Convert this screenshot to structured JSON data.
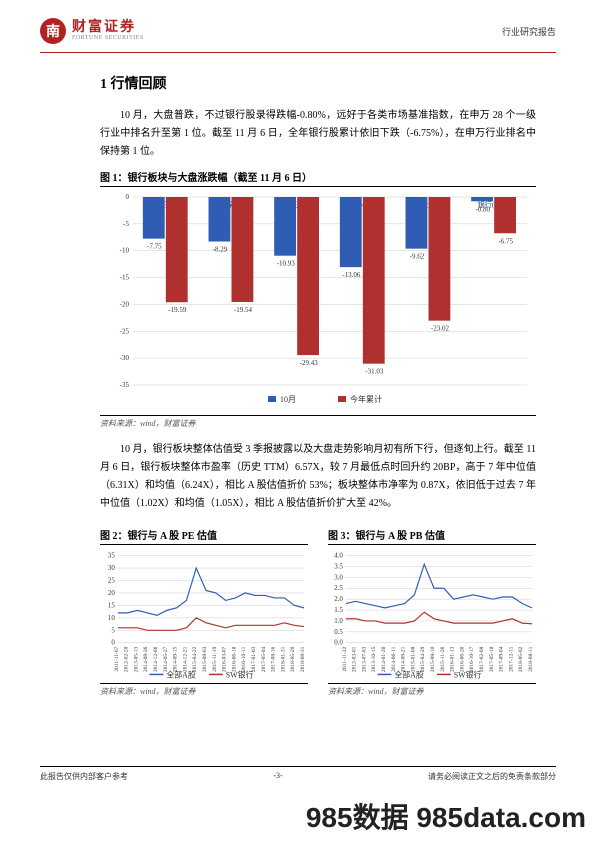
{
  "header": {
    "logo_glyph": "南",
    "logo_cn": "财富证券",
    "logo_en": "FORTUNE SECURITIES",
    "doc_type": "行业研究报告"
  },
  "section": {
    "title": "1 行情回顾",
    "para1": "10 月，大盘普跌，不过银行股录得跌幅-0.80%，远好于各类市场基准指数，在申万 28 个一级行业中排名升至第 1 位。截至 11 月 6 日，全年银行股累计依旧下跌（-6.75%），在申万行业排名中保持第 1 位。",
    "para2": "10 月，银行板块整体估值受 3 季报披露以及大盘走势影响月初有所下行，但逐旬上行。截至 11 月 6 日，银行板块整体市盈率（历史 TTM）6.57X，较 7 月最低点时回升约 20BP，高于 7 年中位值（6.31X）和均值（6.24X），相比 A 股估值折价 53%；板块整体市净率为 0.87X，依旧低于过去 7 年中位值（1.02X）和均值（1.05X），相比 A 股估值折价扩大至 42%。"
  },
  "fig1": {
    "title": "图 1：银行板块与大盘涨跌幅（截至 11 月 6 日）",
    "source": "资料来源：wind，财富证券",
    "type": "bar",
    "categories": [
      "上证综指",
      "沪深300",
      "深证成指",
      "中小板指",
      "创业板指",
      "银行(申万)"
    ],
    "series": [
      {
        "name": "10月",
        "color": "#2f5db3",
        "values": [
          -7.75,
          -8.29,
          -10.93,
          -13.06,
          -9.62,
          -0.8
        ]
      },
      {
        "name": "今年累计",
        "color": "#b03030",
        "values": [
          -19.59,
          -19.54,
          -29.43,
          -31.03,
          -23.02,
          -6.75
        ]
      }
    ],
    "ylim": [
      -35,
      0
    ],
    "ytick_step": 5,
    "grid_color": "#cccccc",
    "background": "#ffffff",
    "bar_width": 0.35,
    "label_fontsize": 7
  },
  "fig2": {
    "title": "图 2：银行与 A 股 PE 估值",
    "source": "资料来源：wind，财富证券",
    "type": "line",
    "ylim": [
      0,
      35
    ],
    "ytick_step": 5,
    "grid_color": "#cccccc",
    "x_dates": [
      "2011-11-07",
      "2012-02-28",
      "2013-05-13",
      "2014-08-26",
      "2014-12-06",
      "2014-05-27",
      "2014-09-15",
      "2014-12-21",
      "2015-04-22",
      "2015-08-03",
      "2015-11-19",
      "2016-03-07",
      "2016-06-10",
      "2016-10-11",
      "2017-01-03",
      "2017-05-04",
      "2017-08-16",
      "2018-01-31",
      "2018-05-20",
      "2018-08-31"
    ],
    "series": [
      {
        "name": "全部A股",
        "color": "#2f5db3",
        "values": [
          12,
          12,
          13,
          12,
          11,
          13,
          14,
          17,
          30,
          21,
          20,
          17,
          18,
          20,
          19,
          19,
          18,
          18,
          15,
          14
        ]
      },
      {
        "name": "SW银行",
        "color": "#b03030",
        "values": [
          6,
          6,
          6,
          5,
          5,
          5,
          5,
          6,
          10,
          8,
          7,
          6,
          7,
          7,
          7,
          7,
          7,
          8,
          7,
          6.5
        ]
      }
    ]
  },
  "fig3": {
    "title": "图 3：银行与 A 股 PB 估值",
    "source": "资料来源：wind，财富证券",
    "type": "line",
    "ylim": [
      0,
      4.0
    ],
    "ytick_step": 0.5,
    "grid_color": "#cccccc",
    "x_dates": [
      "2011-11-22",
      "2012-03-01",
      "2013-07-03",
      "2013-10-15",
      "2014-01-20",
      "2014-06-11",
      "2014-09-21",
      "2015-01-08",
      "2015-04-29",
      "2015-08-10",
      "2015-11-26",
      "2016-01-13",
      "2016-06-20",
      "2016-10-17",
      "2017-02-08",
      "2017-05-18",
      "2017-09-04",
      "2017-12-11",
      "2018-05-02",
      "2018-08-11"
    ],
    "series": [
      {
        "name": "全部A股",
        "color": "#2f5db3",
        "values": [
          1.8,
          1.9,
          1.8,
          1.7,
          1.6,
          1.7,
          1.8,
          2.2,
          3.6,
          2.5,
          2.5,
          2.0,
          2.1,
          2.2,
          2.1,
          2.0,
          2.1,
          2.1,
          1.8,
          1.6
        ]
      },
      {
        "name": "SW银行",
        "color": "#b03030",
        "values": [
          1.1,
          1.1,
          1.0,
          1.0,
          0.9,
          0.9,
          0.9,
          1.0,
          1.4,
          1.1,
          1.0,
          0.9,
          0.9,
          0.9,
          0.9,
          0.9,
          1.0,
          1.1,
          0.9,
          0.87
        ]
      }
    ]
  },
  "footer": {
    "left": "此报告仅供内部客户参考",
    "center": "-3-",
    "right": "请务必阅读正文之后的免责条款部分"
  },
  "watermark": "985数据 985data.com"
}
